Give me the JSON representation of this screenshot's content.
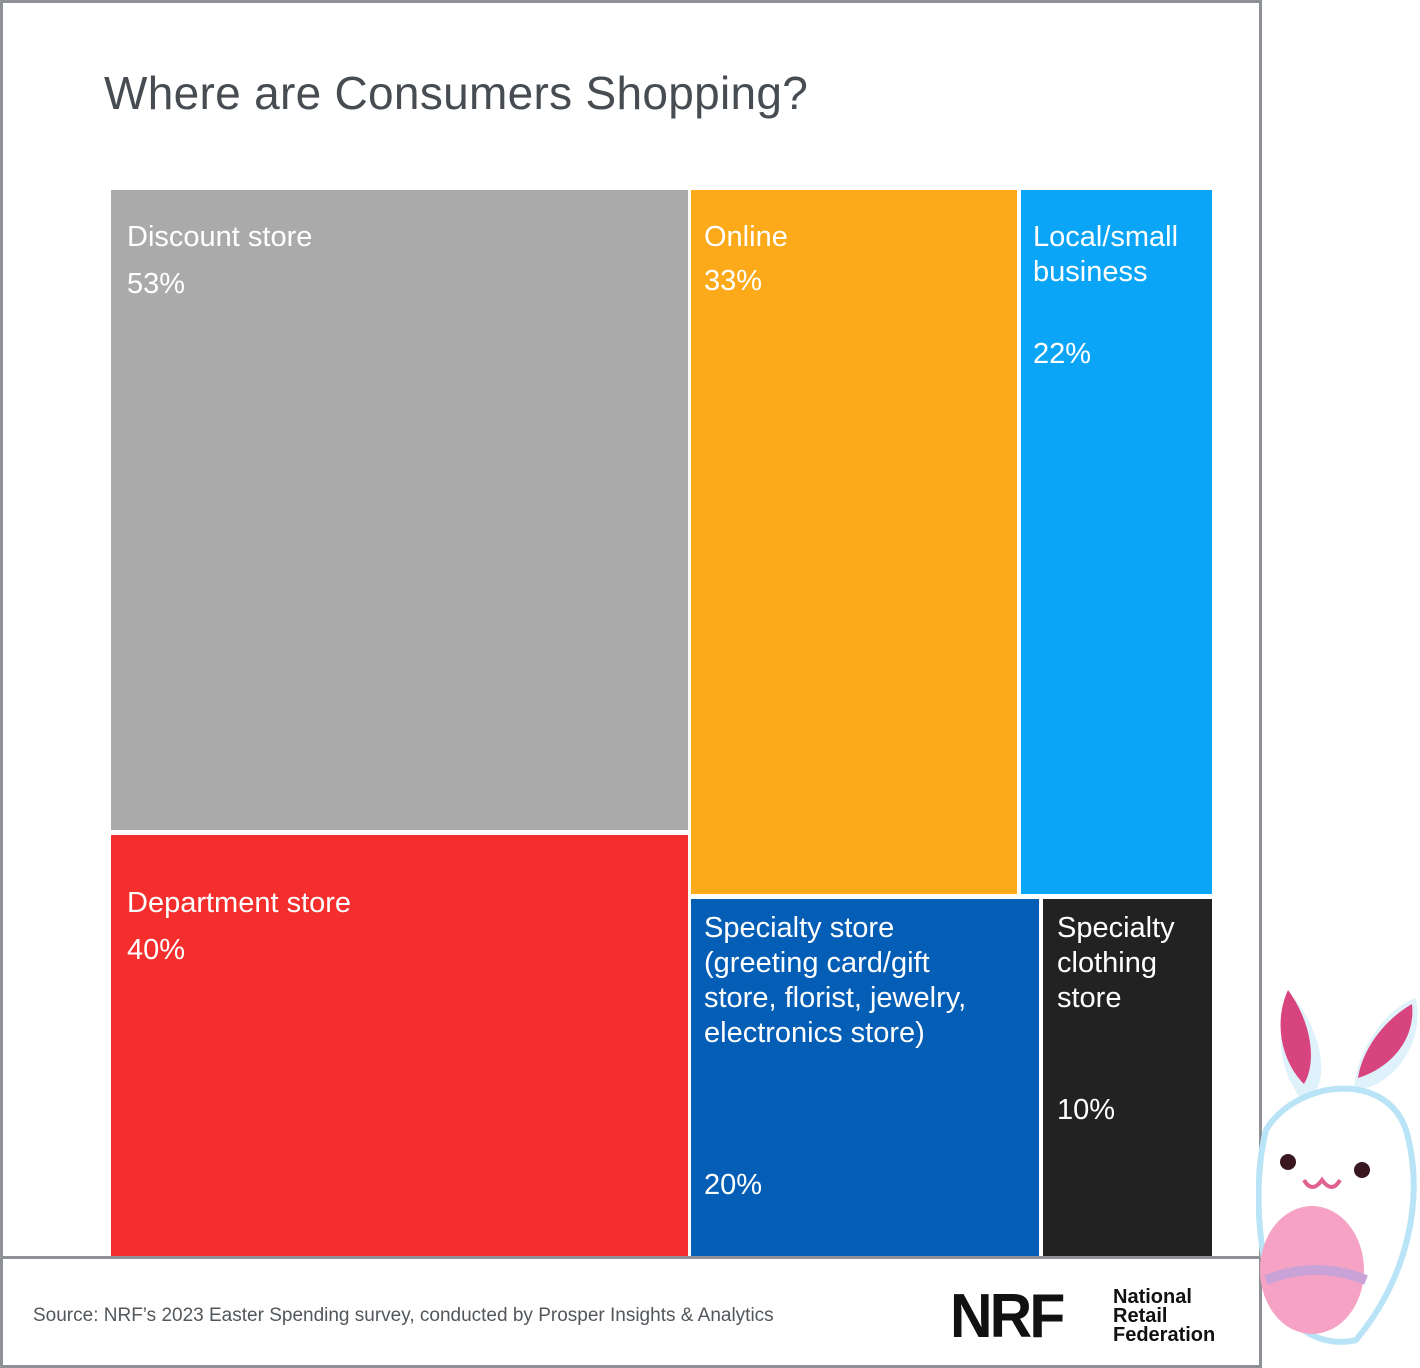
{
  "chart_data": {
    "type": "treemap",
    "title": "Where are Consumers Shopping?",
    "items": [
      {
        "label": "Discount store",
        "value": 53,
        "value_label": "53%",
        "color": "#aaaaaa"
      },
      {
        "label": "Department store",
        "value": 40,
        "value_label": "40%",
        "color": "#f42d2d"
      },
      {
        "label": "Online",
        "value": 33,
        "value_label": "33%",
        "color": "#fcaa1a"
      },
      {
        "label": "Local/small\nbusiness",
        "value": 22,
        "value_label": "22%",
        "color": "#0ba5f8"
      },
      {
        "label": "Specialty store\n(greeting card/gift\nstore, florist, jewelry,\nelectronics store)",
        "value": 20,
        "value_label": "20%",
        "color": "#055eb6"
      },
      {
        "label": "Specialty\nclothing\nstore",
        "value": 10,
        "value_label": "10%",
        "color": "#222222"
      }
    ]
  },
  "footer": {
    "source": "Source: NRF’s 2023 Easter Spending survey, conducted by Prosper Insights & Analytics",
    "logo_mark": "NRF",
    "logo_name": "National\nRetail\nFederation"
  }
}
